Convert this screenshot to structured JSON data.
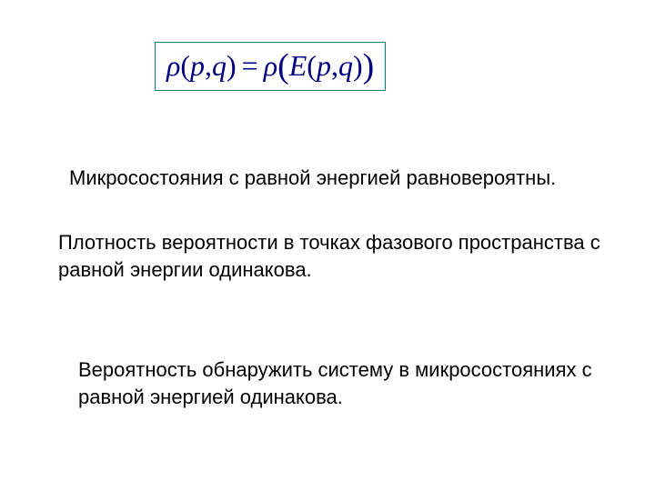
{
  "formula": {
    "border_color": "#008080",
    "text_color": "#000080",
    "background_color": "#ffffff",
    "font_family": "Times New Roman",
    "font_style": "italic",
    "font_size_pt": 24,
    "latex": "\\rho(p,q) = \\rho(E(p,q))",
    "rho1": "ρ",
    "lpar1": "(",
    "p1": "p",
    "comma1": ",",
    "q1": "q",
    "rpar1": ")",
    "equals": "=",
    "rho2": "ρ",
    "lbig": "(",
    "E": "E",
    "lpar2": "(",
    "p2": "p",
    "comma2": ",",
    "q2": "q",
    "rpar2": ")",
    "rbig": ")"
  },
  "paragraphs": {
    "p1": "Микросостояния с равной энергией равновероятны.",
    "p2": "Плотность вероятности в точках фазового пространства с равной энергии одинакова.",
    "p3": "Вероятность обнаружить систему в микросостояниях с равной энергией одинакова."
  },
  "style": {
    "background_color": "#ffffff",
    "text_color": "#000000",
    "body_font_family": "Arial",
    "body_font_size_pt": 17
  }
}
